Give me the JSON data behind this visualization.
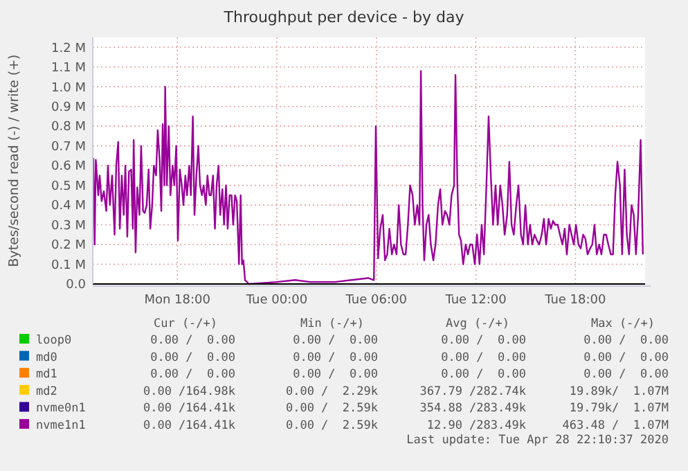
{
  "chart_data": {
    "type": "line",
    "title": "Throughput per device - by day",
    "ylabel": "Bytes/second read (-) / write (+)",
    "xlim": [
      "2020-04-27T12:54",
      "2020-04-28T22:12"
    ],
    "ylim": [
      0,
      1.25
    ],
    "xticks": [
      {
        "value": "2020-04-27T18:00",
        "label": "Mon 18:00"
      },
      {
        "value": "2020-04-28T00:00",
        "label": "Tue 00:00"
      },
      {
        "value": "2020-04-28T06:00",
        "label": "Tue 06:00"
      },
      {
        "value": "2020-04-28T12:00",
        "label": "Tue 12:00"
      },
      {
        "value": "2020-04-28T18:00",
        "label": "Tue 18:00"
      }
    ],
    "yticks": [
      {
        "value": 0,
        "label": "0.0"
      },
      {
        "value": 0.1,
        "label": "0.1 M"
      },
      {
        "value": 0.2,
        "label": "0.2 M"
      },
      {
        "value": 0.3,
        "label": "0.3 M"
      },
      {
        "value": 0.4,
        "label": "0.4 M"
      },
      {
        "value": 0.5,
        "label": "0.5 M"
      },
      {
        "value": 0.6,
        "label": "0.6 M"
      },
      {
        "value": 0.7,
        "label": "0.7 M"
      },
      {
        "value": 0.8,
        "label": "0.8 M"
      },
      {
        "value": 0.9,
        "label": "0.9 M"
      },
      {
        "value": 1.0,
        "label": "1.0 M"
      },
      {
        "value": 1.1,
        "label": "1.1 M"
      },
      {
        "value": 1.2,
        "label": "1.2 M"
      }
    ],
    "grid": true,
    "legend": "bottom",
    "marker": "none",
    "line_style": "solid",
    "series": [
      {
        "name": "loop0",
        "color": "#00cc00"
      },
      {
        "name": "md0",
        "color": "#0066b3"
      },
      {
        "name": "md1",
        "color": "#ff8000"
      },
      {
        "name": "md2",
        "color": "#ffcc00"
      },
      {
        "name": "nvme0n1",
        "color": "#330099"
      },
      {
        "name": "nvme1n1",
        "color": "#990099",
        "x": [
          "2020-04-27T12:56",
          "2020-04-27T13:01",
          "2020-04-27T13:05",
          "2020-04-27T13:14",
          "2020-04-27T13:19",
          "2020-04-27T13:26",
          "2020-04-27T13:34",
          "2020-04-27T13:43",
          "2020-04-27T13:49",
          "2020-04-27T13:56",
          "2020-04-27T14:04",
          "2020-04-27T14:13",
          "2020-04-27T14:19",
          "2020-04-27T14:26",
          "2020-04-27T14:32",
          "2020-04-27T14:39",
          "2020-04-27T14:46",
          "2020-04-27T14:52",
          "2020-04-27T14:59",
          "2020-04-27T15:05",
          "2020-04-27T15:13",
          "2020-04-27T15:19",
          "2020-04-27T15:22",
          "2020-04-27T15:29",
          "2020-04-27T15:35",
          "2020-04-27T15:43",
          "2020-04-27T15:49",
          "2020-04-27T15:56",
          "2020-04-27T16:02",
          "2020-04-27T16:09",
          "2020-04-27T16:16",
          "2020-04-27T16:22",
          "2020-04-27T16:29",
          "2020-04-27T16:35",
          "2020-04-27T16:43",
          "2020-04-27T16:49",
          "2020-04-27T16:56",
          "2020-04-27T17:02",
          "2020-04-27T17:07",
          "2020-04-27T17:13",
          "2020-04-27T17:16",
          "2020-04-27T17:22",
          "2020-04-27T17:29",
          "2020-04-27T17:35",
          "2020-04-27T17:43",
          "2020-04-27T17:49",
          "2020-04-27T17:56",
          "2020-04-27T18:02",
          "2020-04-27T18:09",
          "2020-04-27T18:16",
          "2020-04-27T18:22",
          "2020-04-27T18:29",
          "2020-04-27T18:35",
          "2020-04-27T18:43",
          "2020-04-27T18:49",
          "2020-04-27T18:56",
          "2020-04-27T19:02",
          "2020-04-27T19:09",
          "2020-04-27T19:16",
          "2020-04-27T19:22",
          "2020-04-27T19:29",
          "2020-04-27T19:35",
          "2020-04-27T19:43",
          "2020-04-27T19:49",
          "2020-04-27T19:56",
          "2020-04-27T20:02",
          "2020-04-27T20:09",
          "2020-04-27T20:16",
          "2020-04-27T20:22",
          "2020-04-27T20:29",
          "2020-04-27T20:35",
          "2020-04-27T20:43",
          "2020-04-27T20:49",
          "2020-04-27T20:56",
          "2020-04-27T21:02",
          "2020-04-27T21:09",
          "2020-04-27T21:16",
          "2020-04-27T21:22",
          "2020-04-27T21:29",
          "2020-04-27T21:35",
          "2020-04-27T21:43",
          "2020-04-27T21:49",
          "2020-04-27T21:54",
          "2020-04-27T21:59",
          "2020-04-27T22:05",
          "2020-04-27T22:19",
          "2020-04-28T00:00",
          "2020-04-28T01:06",
          "2020-04-28T02:00",
          "2020-04-28T03:30",
          "2020-04-28T05:30",
          "2020-04-28T05:51",
          "2020-04-28T05:58",
          "2020-04-28T06:06",
          "2020-04-28T06:14",
          "2020-04-28T06:23",
          "2020-04-28T06:31",
          "2020-04-28T06:39",
          "2020-04-28T06:47",
          "2020-04-28T06:56",
          "2020-04-28T07:04",
          "2020-04-28T07:13",
          "2020-04-28T07:21",
          "2020-04-28T07:29",
          "2020-04-28T07:38",
          "2020-04-28T07:46",
          "2020-04-28T07:54",
          "2020-04-28T08:02",
          "2020-04-28T08:11",
          "2020-04-28T08:19",
          "2020-04-28T08:28",
          "2020-04-28T08:36",
          "2020-04-28T08:41",
          "2020-04-28T08:47",
          "2020-04-28T08:53",
          "2020-04-28T09:01",
          "2020-04-28T09:09",
          "2020-04-28T09:17",
          "2020-04-28T09:26",
          "2020-04-28T09:34",
          "2020-04-28T09:43",
          "2020-04-28T09:51",
          "2020-04-28T09:59",
          "2020-04-28T10:08",
          "2020-04-28T10:16",
          "2020-04-28T10:24",
          "2020-04-28T10:32",
          "2020-04-28T10:41",
          "2020-04-28T10:46",
          "2020-04-28T10:53",
          "2020-04-28T10:59",
          "2020-04-28T11:06",
          "2020-04-28T11:14",
          "2020-04-28T11:23",
          "2020-04-28T11:31",
          "2020-04-28T11:39",
          "2020-04-28T11:47",
          "2020-04-28T11:56",
          "2020-04-28T12:04",
          "2020-04-28T12:13",
          "2020-04-28T12:21",
          "2020-04-28T12:29",
          "2020-04-28T12:38",
          "2020-04-28T12:46",
          "2020-04-28T12:54",
          "2020-04-28T13:02",
          "2020-04-28T13:11",
          "2020-04-28T13:19",
          "2020-04-28T13:28",
          "2020-04-28T13:36",
          "2020-04-28T13:44",
          "2020-04-28T13:53",
          "2020-04-28T14:01",
          "2020-04-28T14:09",
          "2020-04-28T14:17",
          "2020-04-28T14:26",
          "2020-04-28T14:34",
          "2020-04-28T14:43",
          "2020-04-28T14:51",
          "2020-04-28T14:59",
          "2020-04-28T15:08",
          "2020-04-28T15:16",
          "2020-04-28T15:24",
          "2020-04-28T15:32",
          "2020-04-28T15:41",
          "2020-04-28T15:49",
          "2020-04-28T15:58",
          "2020-04-28T16:06",
          "2020-04-28T16:14",
          "2020-04-28T16:23",
          "2020-04-28T16:31",
          "2020-04-28T16:39",
          "2020-04-28T16:47",
          "2020-04-28T16:56",
          "2020-04-28T17:04",
          "2020-04-28T17:13",
          "2020-04-28T17:21",
          "2020-04-28T17:29",
          "2020-04-28T17:38",
          "2020-04-28T17:46",
          "2020-04-28T17:54",
          "2020-04-28T18:02",
          "2020-04-28T18:11",
          "2020-04-28T18:19",
          "2020-04-28T18:28",
          "2020-04-28T18:36",
          "2020-04-28T18:44",
          "2020-04-28T18:53",
          "2020-04-28T19:01",
          "2020-04-28T19:09",
          "2020-04-28T19:17",
          "2020-04-28T19:26",
          "2020-04-28T19:34",
          "2020-04-28T19:43",
          "2020-04-28T19:51",
          "2020-04-28T19:59",
          "2020-04-28T20:08",
          "2020-04-28T20:16",
          "2020-04-28T20:24",
          "2020-04-28T20:32",
          "2020-04-28T20:41",
          "2020-04-28T20:49",
          "2020-04-28T20:58",
          "2020-04-28T21:06",
          "2020-04-28T21:14",
          "2020-04-28T21:23",
          "2020-04-28T21:31",
          "2020-04-28T21:39",
          "2020-04-28T21:47",
          "2020-04-28T21:56",
          "2020-04-28T22:04"
        ],
        "values": [
          0.64,
          0.2,
          0.63,
          0.45,
          0.55,
          0.42,
          0.47,
          0.37,
          0.6,
          0.4,
          0.55,
          0.25,
          0.6,
          0.72,
          0.28,
          0.55,
          0.35,
          0.6,
          0.24,
          0.57,
          0.58,
          0.28,
          0.73,
          0.16,
          0.49,
          0.35,
          0.7,
          0.37,
          0.36,
          0.4,
          0.58,
          0.28,
          0.4,
          0.6,
          0.55,
          0.78,
          0.63,
          0.37,
          0.81,
          0.5,
          1.0,
          0.5,
          0.8,
          0.45,
          0.6,
          0.5,
          0.7,
          0.22,
          0.58,
          0.5,
          0.4,
          0.55,
          0.45,
          0.6,
          0.45,
          0.85,
          0.35,
          0.55,
          0.7,
          0.5,
          0.45,
          0.5,
          0.4,
          0.55,
          0.45,
          0.45,
          0.55,
          0.28,
          0.5,
          0.6,
          0.35,
          0.48,
          0.3,
          0.5,
          0.28,
          0.45,
          0.45,
          0.3,
          0.45,
          0.42,
          0.1,
          0.45,
          0.1,
          0.12,
          0.02,
          0.0,
          0.01,
          0.02,
          0.01,
          0.01,
          0.03,
          0.02,
          0.8,
          0.13,
          0.28,
          0.35,
          0.12,
          0.15,
          0.28,
          0.15,
          0.2,
          0.15,
          0.4,
          0.2,
          0.15,
          0.15,
          0.3,
          0.5,
          0.45,
          0.3,
          0.4,
          0.3,
          1.08,
          0.4,
          0.12,
          0.3,
          0.35,
          0.2,
          0.12,
          0.2,
          0.4,
          0.48,
          0.3,
          0.37,
          0.35,
          0.3,
          0.45,
          0.5,
          1.06,
          0.5,
          0.25,
          0.22,
          0.1,
          0.2,
          0.15,
          0.2,
          0.2,
          0.1,
          0.25,
          0.1,
          0.3,
          0.15,
          0.5,
          0.85,
          0.55,
          0.3,
          0.5,
          0.3,
          0.5,
          0.4,
          0.25,
          0.35,
          0.62,
          0.3,
          0.25,
          0.4,
          0.5,
          0.25,
          0.2,
          0.4,
          0.2,
          0.3,
          0.2,
          0.25,
          0.22,
          0.2,
          0.25,
          0.33,
          0.2,
          0.33,
          0.28,
          0.32,
          0.3,
          0.3,
          0.25,
          0.2,
          0.28,
          0.15,
          0.3,
          0.25,
          0.2,
          0.3,
          0.2,
          0.18,
          0.25,
          0.23,
          0.15,
          0.18,
          0.2,
          0.3,
          0.15,
          0.2,
          0.15,
          0.25,
          0.25,
          0.2,
          0.15,
          0.15,
          0.45,
          0.62,
          0.5,
          0.15,
          0.58,
          0.25,
          0.15,
          0.4,
          0.35,
          0.15,
          0.35,
          0.73,
          0.15
        ]
      }
    ],
    "annotations": [
      "Cur (-/+)",
      "Min (-/+)",
      "Avg (-/+)",
      "Max (-/+)",
      "0.00 /  0.00",
      "0.00 /  0.00",
      "0.00 /  0.00",
      "0.00 /  0.00",
      "0.00 /  0.00",
      "0.00 /  0.00",
      "0.00 /  0.00",
      "0.00 /  0.00",
      "0.00 /  0.00",
      "0.00 /  0.00",
      "0.00 /  0.00",
      "0.00 /  0.00",
      "0.00 /164.98k",
      "0.00 /  2.29k",
      "367.79 /282.74k",
      "19.89k/  1.07M",
      "0.00 /164.41k",
      "0.00 /  2.59k",
      "354.88 /283.49k",
      "19.79k/  1.07M",
      "0.00 /164.41k",
      "0.00 /  2.59k",
      "12.90 /283.49k",
      "463.48 /  1.07M",
      "Last update: Tue Apr 28 22:10:37 2020"
    ]
  }
}
